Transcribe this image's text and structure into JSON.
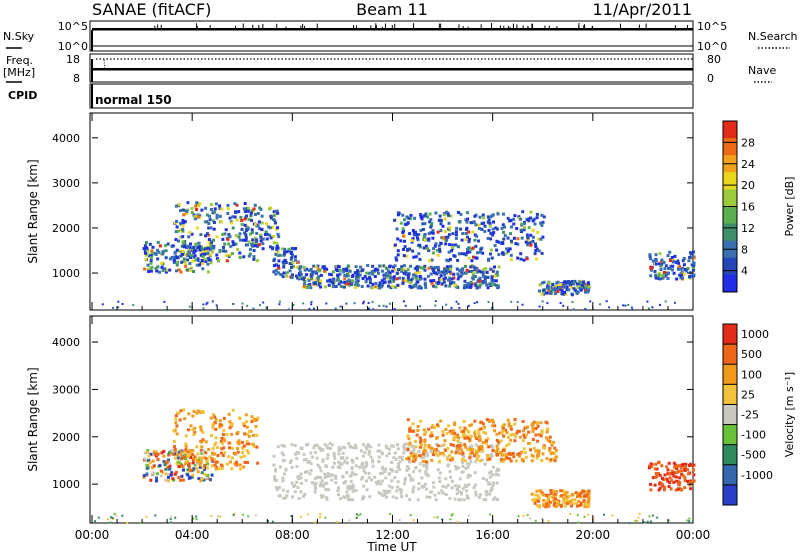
{
  "header": {
    "title": "SANAE (fitACF)",
    "beam": "Beam 11",
    "date": "11/Apr/2011"
  },
  "top_panels": {
    "nsky_label": "N.Sky",
    "nsearch_label": "N.Search",
    "nsky_ticks": [
      "10^5",
      "10^0"
    ],
    "nsearch_ticks": [
      "10^5",
      "10^0"
    ],
    "freq_label": "Freq.",
    "freq_unit": "[MHz]",
    "freq_ticks": [
      "18",
      "8"
    ],
    "nave_label": "Nave",
    "nave_ticks": [
      "80",
      "0"
    ],
    "cpid_label": "CPID",
    "cpid_value": "normal 150"
  },
  "chart_data": [
    {
      "type": "heatmap",
      "ylabel": "Slant Range [km]",
      "xlabel": "",
      "x_ticks": [
        "00:00",
        "04:00",
        "08:00",
        "12:00",
        "16:00",
        "20:00",
        "00:00"
      ],
      "xlim_hours": [
        0,
        24
      ],
      "y_ticks": [
        "1000",
        "2000",
        "3000",
        "4000"
      ],
      "ylim_km": [
        180,
        4550
      ],
      "colorbar_label": "Power [dB]",
      "colorbar_ticks": [
        "4",
        "8",
        "12",
        "16",
        "20",
        "24",
        "28"
      ],
      "colorbar_colors": [
        "#1f2ee6",
        "#2447b8",
        "#3a6fb0",
        "#3f8f6e",
        "#5cae4e",
        "#9ccc3c",
        "#e8d81c",
        "#f2a21c",
        "#ec6a14",
        "#e42a18"
      ],
      "regions": [
        {
          "t0": 2.0,
          "t1": 4.8,
          "r0": 1050,
          "r1": 1750,
          "level": 0.5
        },
        {
          "t0": 3.2,
          "t1": 6.6,
          "r0": 1300,
          "r1": 2600,
          "level": 0.45
        },
        {
          "t0": 6.0,
          "t1": 7.4,
          "r0": 1500,
          "r1": 2500,
          "level": 0.3
        },
        {
          "t0": 7.2,
          "t1": 8.3,
          "r0": 900,
          "r1": 1600,
          "level": 0.2
        },
        {
          "t0": 8.2,
          "t1": 16.2,
          "r0": 700,
          "r1": 1200,
          "level": 0.25
        },
        {
          "t0": 12.0,
          "t1": 18.0,
          "r0": 1300,
          "r1": 2400,
          "level": 0.18
        },
        {
          "t0": 17.8,
          "t1": 19.8,
          "r0": 550,
          "r1": 850,
          "level": 0.3
        },
        {
          "t0": 22.2,
          "t1": 24.0,
          "r0": 900,
          "r1": 1500,
          "level": 0.2
        }
      ]
    },
    {
      "type": "heatmap",
      "ylabel": "Slant Range [km]",
      "xlabel": "Time UT",
      "x_ticks": [
        "00:00",
        "04:00",
        "08:00",
        "12:00",
        "16:00",
        "20:00",
        "00:00"
      ],
      "xlim_hours": [
        0,
        24
      ],
      "y_ticks": [
        "1000",
        "2000",
        "3000",
        "4000"
      ],
      "ylim_km": [
        180,
        4550
      ],
      "colorbar_label": "Velocity [m s⁻¹]",
      "colorbar_ticks": [
        "1000",
        "500",
        "100",
        "25",
        "-25",
        "-100",
        "-500",
        "-1000"
      ],
      "colorbar_colors": [
        "#2a3fc8",
        "#3668b0",
        "#2f8a5e",
        "#67c23a",
        "#c8c8c0",
        "#f2c23a",
        "#f29a1c",
        "#ee6618",
        "#e42a18"
      ],
      "regions": [
        {
          "t0": 2.0,
          "t1": 4.8,
          "r0": 1100,
          "r1": 1750,
          "kind": "mixed"
        },
        {
          "t0": 3.2,
          "t1": 6.6,
          "r0": 1300,
          "r1": 2600,
          "kind": "orange"
        },
        {
          "t0": 7.2,
          "t1": 16.2,
          "r0": 700,
          "r1": 1900,
          "kind": "grey"
        },
        {
          "t0": 12.5,
          "t1": 18.5,
          "r0": 1500,
          "r1": 2400,
          "kind": "orange"
        },
        {
          "t0": 17.5,
          "t1": 19.8,
          "r0": 550,
          "r1": 900,
          "kind": "orange"
        },
        {
          "t0": 22.2,
          "t1": 24.0,
          "r0": 900,
          "r1": 1500,
          "kind": "red"
        }
      ]
    }
  ]
}
